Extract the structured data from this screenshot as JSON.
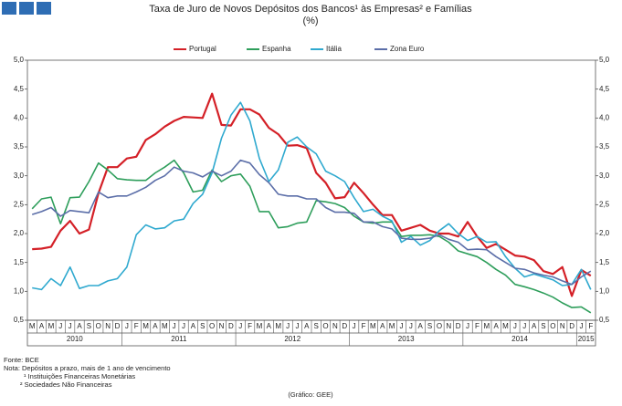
{
  "chart_data": {
    "type": "line",
    "title": "Taxa de Juro de Novos Depósitos dos Bancos¹ às Empresas² e Famílias",
    "subtitle": "(%)",
    "categories": [
      "M",
      "A",
      "M",
      "J",
      "J",
      "A",
      "S",
      "O",
      "N",
      "D",
      "J",
      "F",
      "M",
      "A",
      "M",
      "J",
      "J",
      "A",
      "S",
      "O",
      "N",
      "D",
      "J",
      "F",
      "M",
      "A",
      "M",
      "J",
      "J",
      "A",
      "S",
      "O",
      "N",
      "D",
      "J",
      "F",
      "M",
      "A",
      "M",
      "J",
      "J",
      "A",
      "S",
      "O",
      "N",
      "D",
      "J",
      "F",
      "M",
      "A",
      "M",
      "J",
      "J",
      "A",
      "S",
      "O",
      "N",
      "D",
      "J",
      "F"
    ],
    "years": [
      "2010",
      "2011",
      "2012",
      "2013",
      "2014",
      "2015"
    ],
    "series": [
      {
        "name": "Portugal",
        "color": "#d42027",
        "values": [
          1.73,
          1.74,
          1.77,
          2.05,
          2.22,
          2.0,
          2.07,
          2.7,
          3.15,
          3.15,
          3.3,
          3.33,
          3.62,
          3.72,
          3.85,
          3.95,
          4.02,
          4.01,
          4.0,
          4.42,
          3.88,
          3.87,
          4.15,
          4.15,
          4.06,
          3.83,
          3.72,
          3.52,
          3.53,
          3.48,
          3.05,
          2.88,
          2.61,
          2.63,
          2.88,
          2.7,
          2.5,
          2.32,
          2.32,
          2.05,
          2.1,
          2.15,
          2.05,
          2.0,
          2.0,
          1.95,
          2.2,
          1.95,
          1.75,
          1.82,
          1.72,
          1.62,
          1.6,
          1.54,
          1.35,
          1.3,
          1.42,
          0.92,
          1.37,
          1.27
        ]
      },
      {
        "name": "Espanha",
        "color": "#2e9e5b",
        "values": [
          2.43,
          2.6,
          2.63,
          2.17,
          2.62,
          2.63,
          2.9,
          3.22,
          3.1,
          2.95,
          2.93,
          2.92,
          2.92,
          3.05,
          3.15,
          3.27,
          3.05,
          2.72,
          2.75,
          3.1,
          2.9,
          3.0,
          3.03,
          2.82,
          2.38,
          2.38,
          2.1,
          2.12,
          2.18,
          2.2,
          2.57,
          2.55,
          2.52,
          2.45,
          2.3,
          2.2,
          2.18,
          2.2,
          2.2,
          1.95,
          1.97,
          1.97,
          1.98,
          1.95,
          1.85,
          1.7,
          1.65,
          1.6,
          1.5,
          1.38,
          1.28,
          1.12,
          1.08,
          1.03,
          0.97,
          0.9,
          0.8,
          0.72,
          0.73,
          0.63
        ]
      },
      {
        "name": "Itália",
        "color": "#2fa9cf",
        "values": [
          1.06,
          1.03,
          1.22,
          1.1,
          1.42,
          1.05,
          1.1,
          1.1,
          1.18,
          1.22,
          1.42,
          1.98,
          2.15,
          2.08,
          2.1,
          2.22,
          2.25,
          2.52,
          2.68,
          3.05,
          3.65,
          4.05,
          4.27,
          3.95,
          3.3,
          2.9,
          3.1,
          3.58,
          3.67,
          3.5,
          3.38,
          3.08,
          3.0,
          2.9,
          2.62,
          2.38,
          2.42,
          2.3,
          2.22,
          1.85,
          1.95,
          1.8,
          1.88,
          2.05,
          2.17,
          2.0,
          1.88,
          1.95,
          1.85,
          1.86,
          1.6,
          1.4,
          1.25,
          1.3,
          1.25,
          1.2,
          1.1,
          1.12,
          1.38,
          1.03
        ]
      },
      {
        "name": "Zona Euro",
        "color": "#5b6ea8",
        "values": [
          2.33,
          2.38,
          2.45,
          2.3,
          2.4,
          2.38,
          2.36,
          2.72,
          2.62,
          2.65,
          2.65,
          2.72,
          2.8,
          2.92,
          3.0,
          3.15,
          3.08,
          3.05,
          2.98,
          3.08,
          3.0,
          3.08,
          3.27,
          3.22,
          3.02,
          2.88,
          2.68,
          2.65,
          2.65,
          2.6,
          2.6,
          2.45,
          2.37,
          2.37,
          2.35,
          2.2,
          2.2,
          2.12,
          2.08,
          1.92,
          1.9,
          1.9,
          1.92,
          1.98,
          1.9,
          1.85,
          1.72,
          1.73,
          1.72,
          1.6,
          1.5,
          1.4,
          1.38,
          1.32,
          1.28,
          1.25,
          1.18,
          1.12,
          1.25,
          1.35
        ]
      }
    ],
    "ylim": [
      0.5,
      5.0
    ],
    "yticks": [
      {
        "value": 0.5,
        "label": "0,5"
      },
      {
        "value": 1.0,
        "label": "1,0"
      },
      {
        "value": 1.5,
        "label": "1,5"
      },
      {
        "value": 2.0,
        "label": "2,0"
      },
      {
        "value": 2.5,
        "label": "2,5"
      },
      {
        "value": 3.0,
        "label": "3,0"
      },
      {
        "value": 3.5,
        "label": "3,5"
      },
      {
        "value": 4.0,
        "label": "4,0"
      },
      {
        "value": 4.5,
        "label": "4,5"
      },
      {
        "value": 5.0,
        "label": "5,0"
      }
    ],
    "grid": false,
    "notes": [
      "Fonte: BCE",
      "Nota: Depósitos a prazo, mais de 1 ano de vencimento",
      "¹ Instituições Financeiras Monetárias",
      "² Sociedades Não Financeiras"
    ],
    "credit": "(Gráfico: GEE)"
  }
}
